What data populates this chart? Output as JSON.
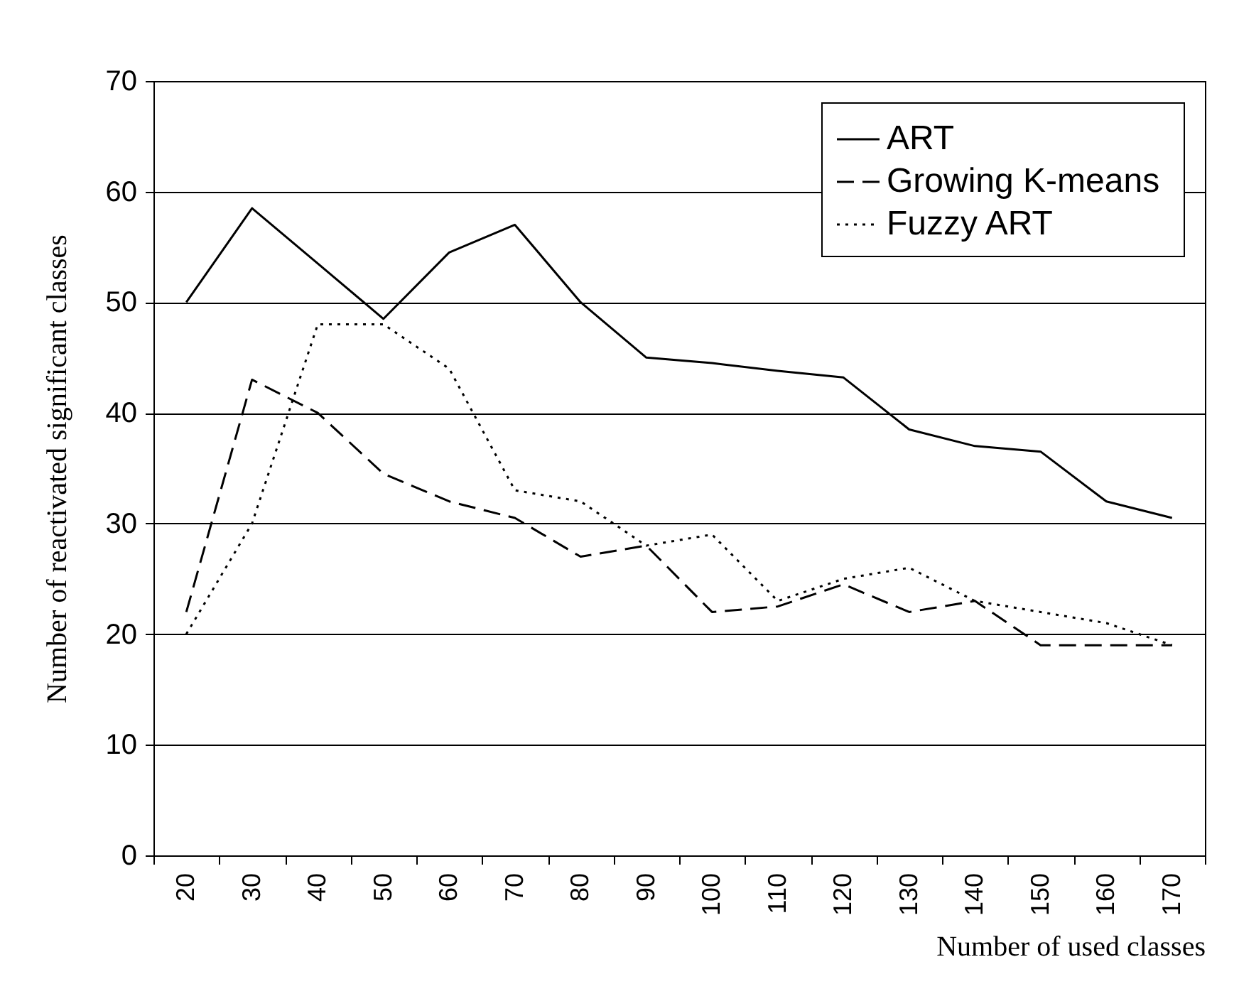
{
  "chart_data": {
    "type": "line",
    "xlabel": "Number of used classes",
    "ylabel": "Number of reactivated significant classes",
    "categories": [
      "20",
      "30",
      "40",
      "50",
      "60",
      "70",
      "80",
      "90",
      "100",
      "110",
      "120",
      "130",
      "140",
      "150",
      "160",
      "170"
    ],
    "series": [
      {
        "name": "ART",
        "color": "#000000",
        "line_style": "solid",
        "values": [
          50,
          58.5,
          53.5,
          48.5,
          54.5,
          57,
          50,
          45,
          44.5,
          43.8,
          43.2,
          38.5,
          37,
          36.5,
          32,
          30.5
        ]
      },
      {
        "name": "Growing  K-means",
        "color": "#000000",
        "line_style": "dashed",
        "values": [
          22,
          43,
          40,
          34.5,
          32,
          30.5,
          27,
          28,
          22,
          22.5,
          24.5,
          22,
          23,
          19,
          19,
          19
        ]
      },
      {
        "name": "Fuzzy ART",
        "color": "#000000",
        "line_style": "dotted",
        "values": [
          20,
          30,
          48,
          48,
          44,
          33,
          32,
          28,
          29,
          23,
          25,
          26,
          23,
          22,
          21,
          19
        ]
      }
    ],
    "ylim": [
      0,
      70
    ],
    "yticks": [
      0,
      10,
      20,
      30,
      40,
      50,
      60,
      70
    ],
    "grid": "y",
    "legend": "top right",
    "marker": "none"
  }
}
